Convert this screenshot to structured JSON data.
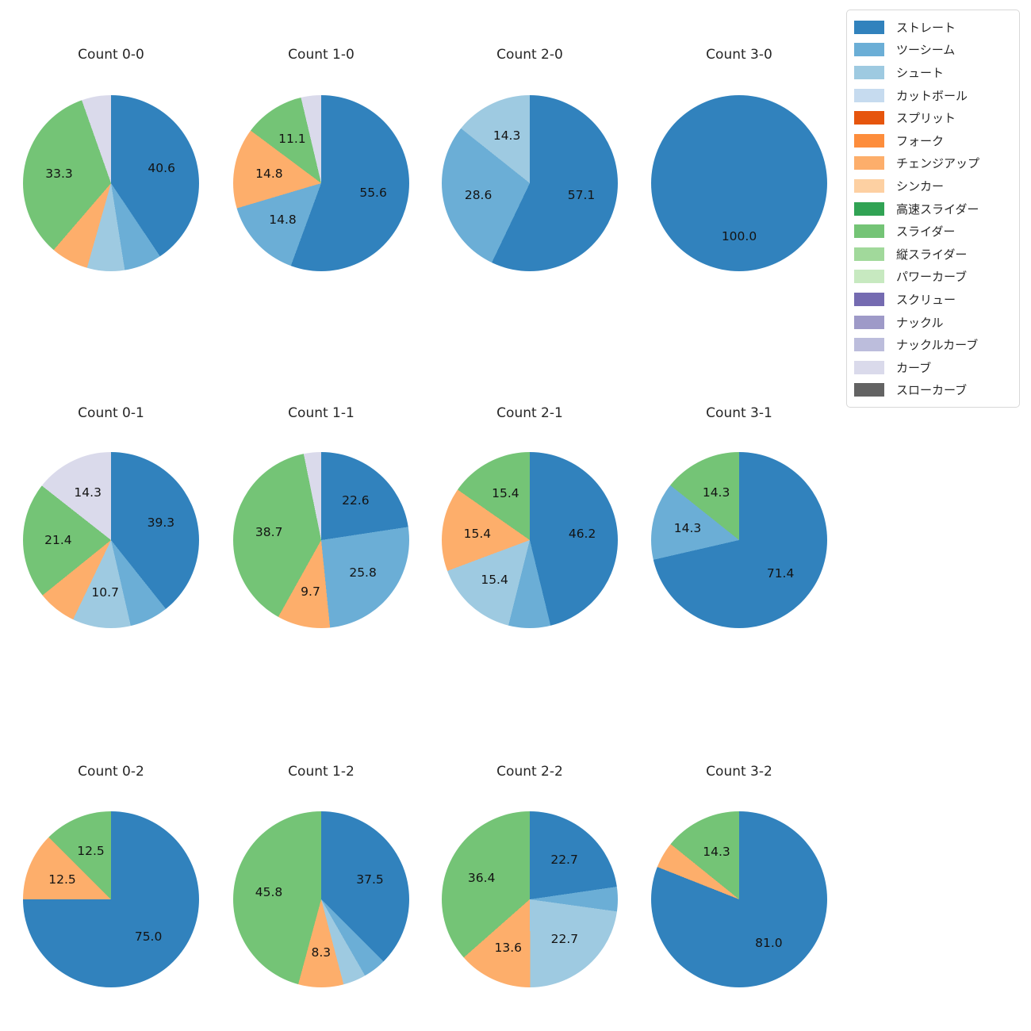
{
  "palette": {
    "ストレート": "#3182bd",
    "ツーシーム": "#6baed6",
    "シュート": "#9ecae1",
    "カットボール": "#c6dbef",
    "スプリット": "#e6550d",
    "フォーク": "#fd8d3c",
    "チェンジアップ": "#fdae6b",
    "シンカー": "#fdd0a2",
    "高速スライダー": "#31a354",
    "スライダー": "#74c476",
    "縦スライダー": "#a1d99b",
    "パワーカーブ": "#c7e9c0",
    "スクリュー": "#756bb1",
    "ナックル": "#9e9ac8",
    "ナックルカーブ": "#bcbddc",
    "カーブ": "#dadaeb",
    "スローカーブ": "#636363"
  },
  "legend": {
    "items": [
      {
        "label": "ストレート"
      },
      {
        "label": "ツーシーム"
      },
      {
        "label": "シュート"
      },
      {
        "label": "カットボール"
      },
      {
        "label": "スプリット"
      },
      {
        "label": "フォーク"
      },
      {
        "label": "チェンジアップ"
      },
      {
        "label": "シンカー"
      },
      {
        "label": "高速スライダー"
      },
      {
        "label": "スライダー"
      },
      {
        "label": "縦スライダー"
      },
      {
        "label": "パワーカーブ"
      },
      {
        "label": "スクリュー"
      },
      {
        "label": "ナックル"
      },
      {
        "label": "ナックルカーブ"
      },
      {
        "label": "カーブ"
      },
      {
        "label": "スローカーブ"
      }
    ]
  },
  "label_display": {
    "threshold_pct": 8,
    "decimals": 1,
    "pct_distance": 0.6
  },
  "chart_data": [
    {
      "type": "pie",
      "title": "Count 0-0",
      "slices": [
        {
          "label": "ストレート",
          "pct": 40.6
        },
        {
          "label": "ツーシーム",
          "pct": 6.9
        },
        {
          "label": "シュート",
          "pct": 6.9
        },
        {
          "label": "チェンジアップ",
          "pct": 6.9
        },
        {
          "label": "スライダー",
          "pct": 33.3
        },
        {
          "label": "カーブ",
          "pct": 5.4
        }
      ]
    },
    {
      "type": "pie",
      "title": "Count 1-0",
      "slices": [
        {
          "label": "ストレート",
          "pct": 55.6
        },
        {
          "label": "ツーシーム",
          "pct": 14.8
        },
        {
          "label": "チェンジアップ",
          "pct": 14.8
        },
        {
          "label": "スライダー",
          "pct": 11.1
        },
        {
          "label": "カーブ",
          "pct": 3.7
        }
      ]
    },
    {
      "type": "pie",
      "title": "Count 2-0",
      "slices": [
        {
          "label": "ストレート",
          "pct": 57.1
        },
        {
          "label": "ツーシーム",
          "pct": 28.6
        },
        {
          "label": "シュート",
          "pct": 14.3
        }
      ]
    },
    {
      "type": "pie",
      "title": "Count 3-0",
      "slices": [
        {
          "label": "ストレート",
          "pct": 100.0
        }
      ]
    },
    {
      "type": "pie",
      "title": "Count 0-1",
      "slices": [
        {
          "label": "ストレート",
          "pct": 39.3
        },
        {
          "label": "ツーシーム",
          "pct": 7.1
        },
        {
          "label": "シュート",
          "pct": 10.7
        },
        {
          "label": "チェンジアップ",
          "pct": 7.1
        },
        {
          "label": "スライダー",
          "pct": 21.4
        },
        {
          "label": "カーブ",
          "pct": 14.3
        }
      ]
    },
    {
      "type": "pie",
      "title": "Count 1-1",
      "slices": [
        {
          "label": "ストレート",
          "pct": 22.6
        },
        {
          "label": "ツーシーム",
          "pct": 25.8
        },
        {
          "label": "チェンジアップ",
          "pct": 9.7
        },
        {
          "label": "スライダー",
          "pct": 38.7
        },
        {
          "label": "カーブ",
          "pct": 3.2
        }
      ]
    },
    {
      "type": "pie",
      "title": "Count 2-1",
      "slices": [
        {
          "label": "ストレート",
          "pct": 46.2
        },
        {
          "label": "ツーシーム",
          "pct": 7.7
        },
        {
          "label": "シュート",
          "pct": 15.4
        },
        {
          "label": "チェンジアップ",
          "pct": 15.4
        },
        {
          "label": "スライダー",
          "pct": 15.4
        }
      ]
    },
    {
      "type": "pie",
      "title": "Count 3-1",
      "slices": [
        {
          "label": "ストレート",
          "pct": 71.4
        },
        {
          "label": "ツーシーム",
          "pct": 14.3
        },
        {
          "label": "スライダー",
          "pct": 14.3
        }
      ]
    },
    {
      "type": "pie",
      "title": "Count 0-2",
      "slices": [
        {
          "label": "ストレート",
          "pct": 75.0
        },
        {
          "label": "チェンジアップ",
          "pct": 12.5
        },
        {
          "label": "スライダー",
          "pct": 12.5
        }
      ]
    },
    {
      "type": "pie",
      "title": "Count 1-2",
      "slices": [
        {
          "label": "ストレート",
          "pct": 37.5
        },
        {
          "label": "ツーシーム",
          "pct": 4.2
        },
        {
          "label": "シュート",
          "pct": 4.2
        },
        {
          "label": "チェンジアップ",
          "pct": 8.3
        },
        {
          "label": "スライダー",
          "pct": 45.8
        }
      ]
    },
    {
      "type": "pie",
      "title": "Count 2-2",
      "slices": [
        {
          "label": "ストレート",
          "pct": 22.7
        },
        {
          "label": "ツーシーム",
          "pct": 4.5
        },
        {
          "label": "シュート",
          "pct": 22.7
        },
        {
          "label": "チェンジアップ",
          "pct": 13.6
        },
        {
          "label": "スライダー",
          "pct": 36.4
        }
      ]
    },
    {
      "type": "pie",
      "title": "Count 3-2",
      "slices": [
        {
          "label": "ストレート",
          "pct": 81.0
        },
        {
          "label": "チェンジアップ",
          "pct": 4.8
        },
        {
          "label": "スライダー",
          "pct": 14.3
        }
      ]
    }
  ]
}
